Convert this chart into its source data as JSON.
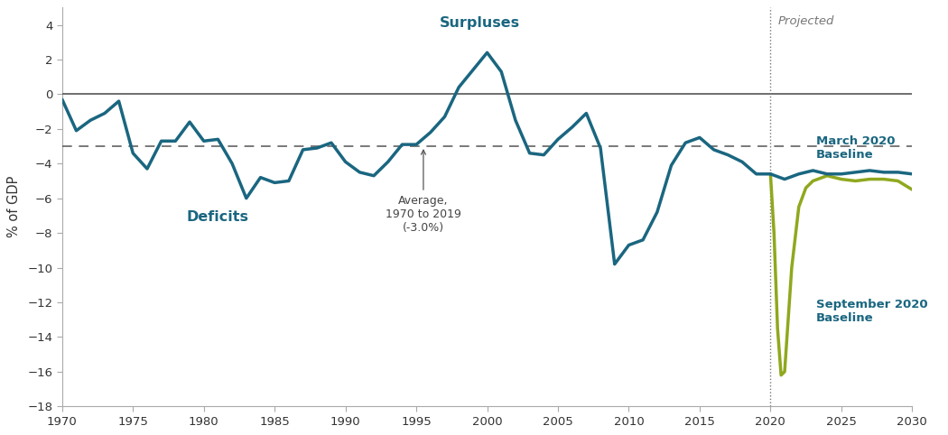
{
  "ylabel": "% of GDP",
  "xlim": [
    1970,
    2030
  ],
  "ylim": [
    -18,
    5
  ],
  "yticks": [
    4,
    2,
    0,
    -2,
    -4,
    -6,
    -8,
    -10,
    -12,
    -14,
    -16,
    -18
  ],
  "xticks": [
    1970,
    1975,
    1980,
    1985,
    1990,
    1995,
    2000,
    2005,
    2010,
    2015,
    2020,
    2025,
    2030
  ],
  "avg_line": -3.0,
  "projection_start": 2020,
  "teal": "#1a6680",
  "olive": "#8fa81e",
  "historical_x": [
    1970,
    1971,
    1972,
    1973,
    1974,
    1975,
    1976,
    1977,
    1978,
    1979,
    1980,
    1981,
    1982,
    1983,
    1984,
    1985,
    1986,
    1987,
    1988,
    1989,
    1990,
    1991,
    1992,
    1993,
    1994,
    1995,
    1996,
    1997,
    1998,
    1999,
    2000,
    2001,
    2002,
    2003,
    2004,
    2005,
    2006,
    2007,
    2008,
    2009,
    2010,
    2011,
    2012,
    2013,
    2014,
    2015,
    2016,
    2017,
    2018,
    2019,
    2020
  ],
  "historical_y": [
    -0.3,
    -2.1,
    -1.5,
    -1.1,
    -0.4,
    -3.4,
    -4.3,
    -2.7,
    -2.7,
    -1.6,
    -2.7,
    -2.6,
    -4.0,
    -6.0,
    -4.8,
    -5.1,
    -5.0,
    -3.2,
    -3.1,
    -2.8,
    -3.9,
    -4.5,
    -4.7,
    -3.9,
    -2.9,
    -2.9,
    -2.2,
    -1.3,
    0.4,
    1.4,
    2.4,
    1.3,
    -1.5,
    -3.4,
    -3.5,
    -2.6,
    -1.9,
    -1.1,
    -3.1,
    -9.8,
    -8.7,
    -8.4,
    -6.8,
    -4.1,
    -2.8,
    -2.5,
    -3.2,
    -3.5,
    -3.9,
    -4.6,
    -4.6
  ],
  "march2020_x": [
    2020,
    2021,
    2022,
    2023,
    2024,
    2025,
    2026,
    2027,
    2028,
    2029,
    2030
  ],
  "march2020_y": [
    -4.6,
    -4.9,
    -4.6,
    -4.4,
    -4.6,
    -4.6,
    -4.5,
    -4.4,
    -4.5,
    -4.5,
    -4.6
  ],
  "sep2020_x": [
    2020,
    2020.25,
    2020.5,
    2020.75,
    2021,
    2021.5,
    2022,
    2022.5,
    2023,
    2024,
    2025,
    2026,
    2027,
    2028,
    2029,
    2030
  ],
  "sep2020_y": [
    -4.6,
    -8.0,
    -13.5,
    -16.2,
    -16.0,
    -10.0,
    -6.5,
    -5.4,
    -5.0,
    -4.7,
    -4.9,
    -5.0,
    -4.9,
    -4.9,
    -5.0,
    -5.5
  ],
  "bg_color": "#ffffff",
  "text_teal": "#1a6680",
  "text_dark": "#444444",
  "text_gray": "#666666"
}
